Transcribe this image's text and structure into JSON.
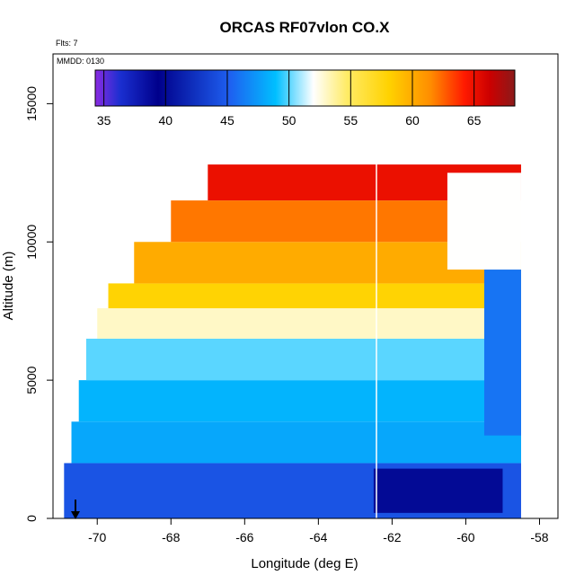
{
  "chart_data": {
    "type": "heatmap",
    "title": "ORCAS RF07vlon CO.X",
    "annotations": [
      "Flts: 7",
      "MMDD: 0130"
    ],
    "xlabel": "Longitude (deg E)",
    "ylabel": "Altitude (m)",
    "xlim": [
      -71.2,
      -57.5
    ],
    "ylim": [
      0,
      16800
    ],
    "x_ticks": [
      -70,
      -68,
      -66,
      -64,
      -62,
      -60,
      -58
    ],
    "y_ticks": [
      0,
      5000,
      10000,
      15000
    ],
    "grid": false,
    "colorbar": {
      "placement": "top-inside",
      "range": [
        34.3,
        68.3
      ],
      "ticks": [
        35,
        40,
        45,
        50,
        55,
        60,
        65
      ],
      "stops": [
        "#8a2be2",
        "#1a2fd0",
        "#00008b",
        "#1e5ff0",
        "#00bfff",
        "#ffffff",
        "#ffeb66",
        "#ffd200",
        "#ff8c00",
        "#ff1a00",
        "#cc0000",
        "#8b1a1a"
      ]
    },
    "series": [
      {
        "values": [
          {
            "y0": 0,
            "y1": 2000,
            "x0": -70.9,
            "x1": -58.5,
            "value": 44.5
          },
          {
            "y0": 2000,
            "y1": 3500,
            "x0": -70.7,
            "x1": -58.5,
            "value": 48
          },
          {
            "y0": 3500,
            "y1": 5000,
            "x0": -70.5,
            "x1": -58.5,
            "value": 48.5
          },
          {
            "y0": 5000,
            "y1": 6500,
            "x0": -70.3,
            "x1": -58.5,
            "value": 50
          },
          {
            "y0": 6500,
            "y1": 7600,
            "x0": -70.0,
            "x1": -58.5,
            "value": 53
          },
          {
            "y0": 7600,
            "y1": 8500,
            "x0": -69.7,
            "x1": -58.5,
            "value": 58
          },
          {
            "y0": 8500,
            "y1": 10000,
            "x0": -69.0,
            "x1": -58.5,
            "value": 60
          },
          {
            "y0": 10000,
            "y1": 11500,
            "x0": -68.0,
            "x1": -59.0,
            "value": 62
          },
          {
            "y0": 11500,
            "y1": 12800,
            "x0": -67.0,
            "x1": -58.5,
            "value": 65
          },
          {
            "y0": 200,
            "y1": 1800,
            "x0": -62.5,
            "x1": -59.0,
            "value": 40
          },
          {
            "y0": 3000,
            "y1": 9000,
            "x0": -59.5,
            "x1": -58.5,
            "value": 46
          },
          {
            "y0": 9000,
            "y1": 12500,
            "x0": -60.5,
            "x1": -58.5,
            "value": 52
          }
        ]
      }
    ]
  }
}
